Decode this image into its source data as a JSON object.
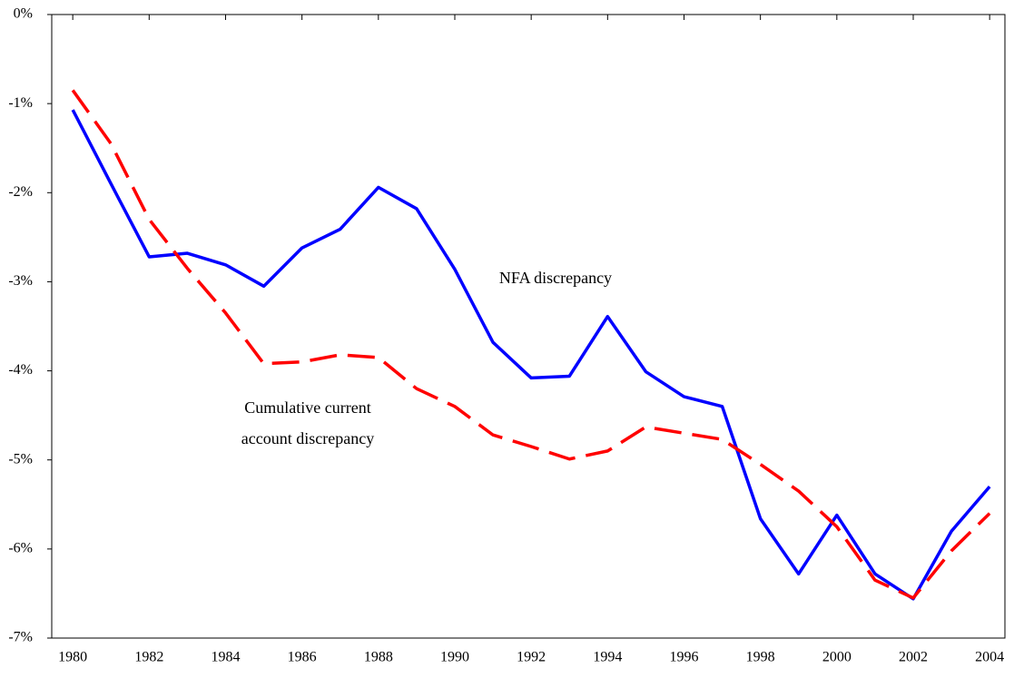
{
  "chart_data": {
    "type": "line",
    "x": [
      1980,
      1981,
      1982,
      1983,
      1984,
      1985,
      1986,
      1987,
      1988,
      1989,
      1990,
      1991,
      1992,
      1993,
      1994,
      1995,
      1996,
      1997,
      1998,
      1999,
      2000,
      2001,
      2002,
      2003,
      2004
    ],
    "series": [
      {
        "name": "NFA discrepancy",
        "color": "#0000ff",
        "dashed": false,
        "values": [
          -1.07,
          -1.9,
          -2.72,
          -2.68,
          -2.81,
          -3.05,
          -2.62,
          -2.41,
          -1.94,
          -2.18,
          -2.86,
          -3.68,
          -4.08,
          -4.06,
          -3.39,
          -4.01,
          -4.29,
          -4.4,
          -5.66,
          -6.28,
          -5.62,
          -6.28,
          -6.56,
          -5.8,
          -5.3
        ]
      },
      {
        "name": "Cumulative current account discrepancy",
        "color": "#ff0000",
        "dashed": true,
        "values": [
          -0.85,
          -1.45,
          -2.3,
          -2.85,
          -3.35,
          -3.92,
          -3.9,
          -3.82,
          -3.85,
          -4.2,
          -4.4,
          -4.72,
          -4.85,
          -4.99,
          -4.9,
          -4.63,
          -4.7,
          -4.77,
          -5.05,
          -5.35,
          -5.75,
          -6.35,
          -6.55,
          -6.02,
          -5.6
        ]
      }
    ],
    "annotations": [
      {
        "lines": [
          "NFA discrepancy"
        ]
      },
      {
        "lines": [
          "Cumulative current",
          "account discrepancy"
        ]
      }
    ],
    "xlim": [
      1979.45,
      2004.4
    ],
    "xticks": [
      1980,
      1982,
      1984,
      1986,
      1988,
      1990,
      1992,
      1994,
      1996,
      1998,
      2000,
      2002,
      2004
    ],
    "ylim": [
      -7,
      0
    ],
    "yticks": [
      {
        "value": 0,
        "label": "0%"
      },
      {
        "value": -1,
        "label": "-1%"
      },
      {
        "value": -2,
        "label": "-2%"
      },
      {
        "value": -3,
        "label": "-3%"
      },
      {
        "value": -4,
        "label": "-4%"
      },
      {
        "value": -5,
        "label": "-5%"
      },
      {
        "value": -6,
        "label": "-6%"
      },
      {
        "value": -7,
        "label": "-7%"
      }
    ],
    "grid": false
  }
}
